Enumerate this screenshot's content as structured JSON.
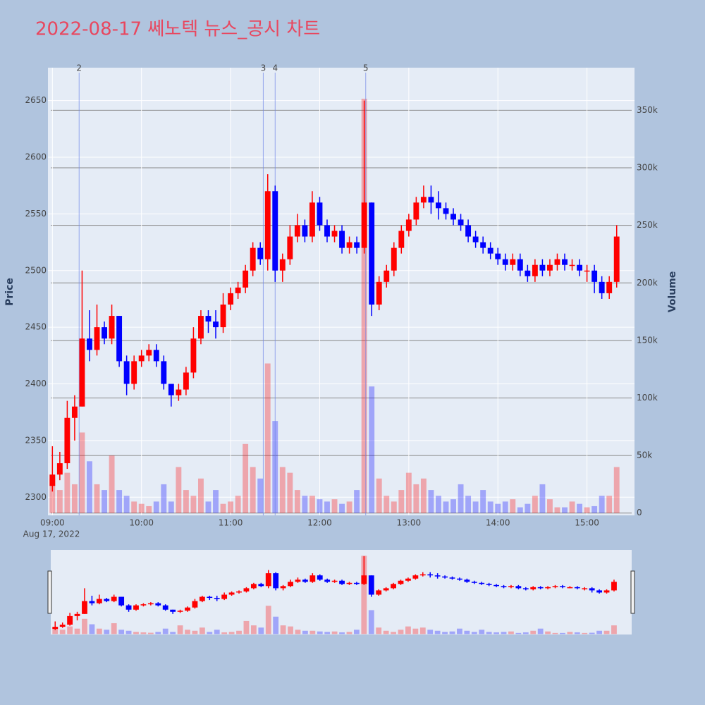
{
  "chart_data": {
    "type": "candlestick",
    "title": "2022-08-17 쎄노텍 뉴스_공시 차트",
    "y_title": "Price",
    "y2_title": "Volume",
    "x": [
      "09:00",
      "09:05",
      "09:10",
      "09:15",
      "09:20",
      "09:25",
      "09:30",
      "09:35",
      "09:40",
      "09:45",
      "09:50",
      "09:55",
      "10:00",
      "10:05",
      "10:10",
      "10:15",
      "10:20",
      "10:25",
      "10:30",
      "10:35",
      "10:40",
      "10:45",
      "10:50",
      "10:55",
      "11:00",
      "11:05",
      "11:10",
      "11:15",
      "11:20",
      "11:25",
      "11:30",
      "11:35",
      "11:40",
      "11:45",
      "11:50",
      "11:55",
      "12:00",
      "12:05",
      "12:10",
      "12:15",
      "12:20",
      "12:25",
      "12:30",
      "12:35",
      "12:40",
      "12:45",
      "12:50",
      "12:55",
      "13:00",
      "13:05",
      "13:10",
      "13:15",
      "13:20",
      "13:25",
      "13:30",
      "13:35",
      "13:40",
      "13:45",
      "13:50",
      "13:55",
      "14:00",
      "14:05",
      "14:10",
      "14:15",
      "14:20",
      "14:25",
      "14:30",
      "14:35",
      "14:40",
      "14:45",
      "14:50",
      "14:55",
      "15:00",
      "15:05",
      "15:10",
      "15:15",
      "15:20"
    ],
    "open": [
      2310,
      2320,
      2330,
      2370,
      2380,
      2440,
      2430,
      2450,
      2440,
      2460,
      2420,
      2400,
      2420,
      2425,
      2430,
      2420,
      2400,
      2390,
      2395,
      2410,
      2440,
      2460,
      2455,
      2450,
      2470,
      2480,
      2485,
      2500,
      2520,
      2510,
      2570,
      2500,
      2510,
      2530,
      2540,
      2530,
      2560,
      2540,
      2530,
      2535,
      2520,
      2525,
      2520,
      2560,
      2470,
      2490,
      2500,
      2520,
      2535,
      2545,
      2560,
      2565,
      2560,
      2555,
      2550,
      2545,
      2540,
      2530,
      2525,
      2520,
      2515,
      2510,
      2505,
      2510,
      2500,
      2495,
      2505,
      2500,
      2505,
      2510,
      2505,
      2505,
      2500,
      2500,
      2490,
      2480,
      2490
    ],
    "high": [
      2345,
      2340,
      2385,
      2390,
      2500,
      2465,
      2470,
      2455,
      2470,
      2460,
      2425,
      2425,
      2430,
      2435,
      2435,
      2425,
      2400,
      2400,
      2415,
      2450,
      2465,
      2465,
      2465,
      2480,
      2485,
      2490,
      2505,
      2525,
      2525,
      2585,
      2575,
      2515,
      2540,
      2550,
      2545,
      2570,
      2565,
      2545,
      2540,
      2540,
      2530,
      2530,
      2650,
      2560,
      2495,
      2505,
      2525,
      2540,
      2550,
      2565,
      2575,
      2575,
      2570,
      2560,
      2555,
      2550,
      2545,
      2535,
      2530,
      2525,
      2520,
      2515,
      2515,
      2515,
      2505,
      2510,
      2510,
      2510,
      2515,
      2515,
      2510,
      2510,
      2505,
      2505,
      2495,
      2495,
      2540
    ],
    "low": [
      2305,
      2315,
      2325,
      2350,
      2380,
      2420,
      2425,
      2435,
      2435,
      2415,
      2390,
      2395,
      2415,
      2420,
      2415,
      2395,
      2380,
      2385,
      2390,
      2405,
      2435,
      2445,
      2440,
      2445,
      2465,
      2475,
      2480,
      2495,
      2505,
      2500,
      2490,
      2490,
      2505,
      2525,
      2525,
      2525,
      2535,
      2525,
      2525,
      2515,
      2515,
      2515,
      2515,
      2460,
      2465,
      2485,
      2495,
      2515,
      2530,
      2540,
      2555,
      2550,
      2545,
      2545,
      2540,
      2535,
      2525,
      2520,
      2515,
      2510,
      2505,
      2500,
      2500,
      2495,
      2490,
      2490,
      2495,
      2495,
      2500,
      2500,
      2500,
      2495,
      2490,
      2480,
      2475,
      2475,
      2485
    ],
    "close": [
      2320,
      2330,
      2370,
      2380,
      2440,
      2430,
      2450,
      2440,
      2460,
      2420,
      2400,
      2420,
      2425,
      2430,
      2420,
      2400,
      2390,
      2395,
      2410,
      2440,
      2460,
      2455,
      2450,
      2470,
      2480,
      2485,
      2500,
      2520,
      2510,
      2570,
      2500,
      2510,
      2530,
      2540,
      2530,
      2560,
      2540,
      2530,
      2535,
      2520,
      2525,
      2520,
      2560,
      2470,
      2490,
      2500,
      2520,
      2535,
      2545,
      2560,
      2565,
      2560,
      2555,
      2550,
      2545,
      2540,
      2530,
      2525,
      2520,
      2515,
      2510,
      2505,
      2510,
      2500,
      2495,
      2505,
      2500,
      2505,
      2510,
      2505,
      2505,
      2500,
      2500,
      2490,
      2480,
      2490,
      2530
    ],
    "volume": [
      30000,
      20000,
      35000,
      25000,
      70000,
      45000,
      25000,
      20000,
      50000,
      20000,
      15000,
      10000,
      8000,
      6000,
      10000,
      25000,
      10000,
      40000,
      20000,
      15000,
      30000,
      10000,
      20000,
      8000,
      10000,
      15000,
      60000,
      40000,
      30000,
      130000,
      80000,
      40000,
      35000,
      20000,
      15000,
      15000,
      12000,
      10000,
      12000,
      8000,
      10000,
      20000,
      360000,
      110000,
      30000,
      15000,
      10000,
      20000,
      35000,
      25000,
      30000,
      20000,
      15000,
      10000,
      12000,
      25000,
      15000,
      10000,
      20000,
      10000,
      8000,
      10000,
      12000,
      5000,
      8000,
      15000,
      25000,
      12000,
      5000,
      5000,
      10000,
      8000,
      5000,
      6000,
      15000,
      15000,
      40000
    ],
    "increasing_color": "#ff0000",
    "decreasing_color": "#0000ff",
    "xlim": [
      "08:57",
      "15:32"
    ],
    "xticks": [
      "09:00",
      "10:00",
      "11:00",
      "12:00",
      "13:00",
      "14:00",
      "15:00"
    ],
    "x_date_label": "Aug 17, 2022",
    "ylim": [
      2284,
      2679
    ],
    "yticks": [
      2300,
      2350,
      2400,
      2450,
      2500,
      2550,
      2600,
      2650
    ],
    "y2lim": [
      -2000,
      387000
    ],
    "y2ticks": [
      0,
      {
        "value": 50000,
        "label": "50k"
      },
      {
        "value": 100000,
        "label": "100k"
      },
      {
        "value": 150000,
        "label": "150k"
      },
      {
        "value": 200000,
        "label": "200k"
      },
      {
        "value": 250000,
        "label": "250k"
      },
      {
        "value": 300000,
        "label": "300k"
      },
      {
        "value": 350000,
        "label": "350k"
      }
    ],
    "news": [
      {
        "label": "2",
        "x": "09:18"
      },
      {
        "label": "3",
        "x": "11:22"
      },
      {
        "label": "4",
        "x": "11:30"
      },
      {
        "label": "5",
        "x": "12:31"
      }
    ],
    "grid": true,
    "range_slider": true
  }
}
